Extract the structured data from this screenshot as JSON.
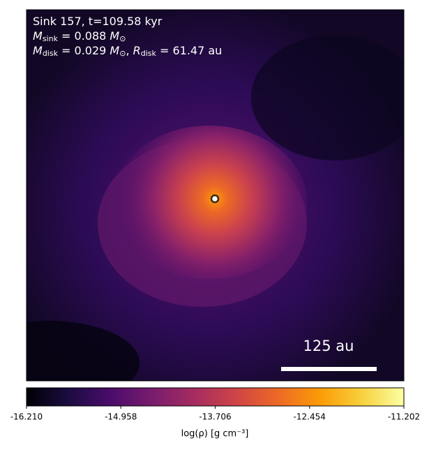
{
  "chart_data": {
    "type": "heatmap",
    "annotations": [
      [
        {
          "text": "Sink 157, t=109.58 kyr"
        }
      ],
      [
        {
          "text": "M",
          "sub": "sink"
        },
        {
          "text": " = 0.088 "
        },
        {
          "text": "M",
          "sub": "⊙"
        }
      ],
      [
        {
          "text": "M",
          "sub": "disk"
        },
        {
          "text": " = 0.029 "
        },
        {
          "text": "M",
          "sub": "⊙"
        },
        {
          "text": ", "
        },
        {
          "text": "R",
          "sub": "disk"
        },
        {
          "text": " = 61.47 au"
        }
      ]
    ],
    "scale_bar": {
      "label": "125 au"
    },
    "colorbar": {
      "label": "log(ρ) [g cm⁻³]",
      "lim": [
        -16.21,
        -11.202
      ],
      "ticks": [
        {
          "value": -16.21,
          "label": "-16.210"
        },
        -14.958,
        -13.706,
        -12.454,
        -11.202
      ],
      "colormap": [
        "#000004",
        "#1b0c41",
        "#4a0c6b",
        "#781c6d",
        "#a52c60",
        "#cf4446",
        "#ed6925",
        "#fb9b06",
        "#f7d13d",
        "#fcffa4"
      ]
    }
  }
}
